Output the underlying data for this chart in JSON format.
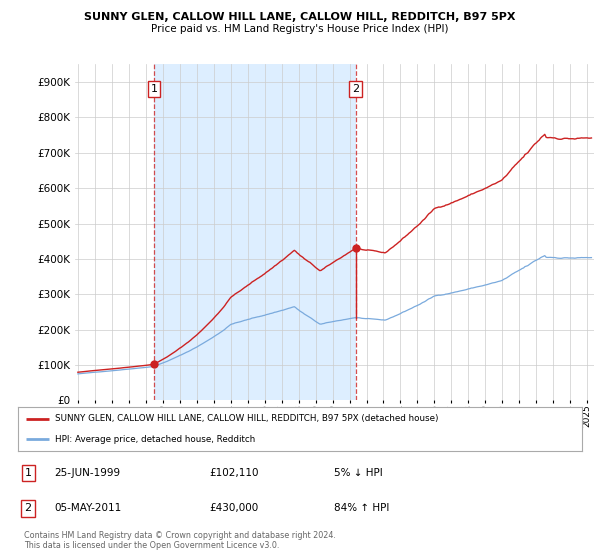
{
  "title1": "SUNNY GLEN, CALLOW HILL LANE, CALLOW HILL, REDDITCH, B97 5PX",
  "title2": "Price paid vs. HM Land Registry's House Price Index (HPI)",
  "yticks": [
    0,
    100000,
    200000,
    300000,
    400000,
    500000,
    600000,
    700000,
    800000,
    900000
  ],
  "xlim_start": 1994.83,
  "xlim_end": 2025.4,
  "ylim_max": 950000,
  "hpi_color": "#7aaadd",
  "property_color": "#cc2222",
  "sale1_year": 1999.48,
  "sale1_price": 102110,
  "sale2_year": 2011.37,
  "sale2_price": 430000,
  "legend_label1": "SUNNY GLEN, CALLOW HILL LANE, CALLOW HILL, REDDITCH, B97 5PX (detached house)",
  "legend_label2": "HPI: Average price, detached house, Redditch",
  "table_row1": [
    "1",
    "25-JUN-1999",
    "£102,110",
    "5% ↓ HPI"
  ],
  "table_row2": [
    "2",
    "05-MAY-2011",
    "£430,000",
    "84% ↑ HPI"
  ],
  "footnote": "Contains HM Land Registry data © Crown copyright and database right 2024.\nThis data is licensed under the Open Government Licence v3.0.",
  "bg_between_sales": "#ddeeff",
  "background_color": "#ffffff",
  "grid_color": "#cccccc"
}
